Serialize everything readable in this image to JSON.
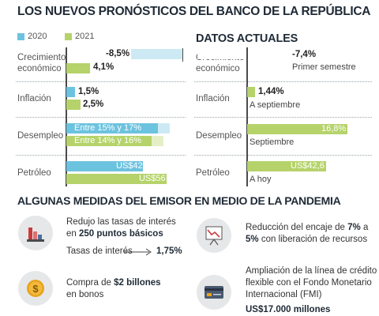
{
  "title": "LOS NUEVOS PRONÓSTICOS DEL BANCO DE LA REPÚBLICA",
  "legend": {
    "items": [
      {
        "label": "2020",
        "color": "#6cc3df"
      },
      {
        "label": "2021",
        "color": "#b5d36a"
      }
    ]
  },
  "current": {
    "title": "DATOS ACTUALES",
    "rows": [
      {
        "label": "Crecimiento económico",
        "value_label": "-7,4%",
        "note": "Primer semestre"
      },
      {
        "label": "Inflación",
        "value_label": "1,44%",
        "note": "A septiembre"
      },
      {
        "label": "Desempleo",
        "value_label": "16,8%",
        "note": "Septiembre"
      },
      {
        "label": "Petróleo",
        "value_label": "US$42,6",
        "note": "A hoy"
      }
    ]
  },
  "chart_data": [
    {
      "type": "bar",
      "orientation": "horizontal",
      "title": "LOS NUEVOS PRONÓSTICOS DEL BANCO DE LA REPÚBLICA",
      "categories": [
        "Crecimiento económico",
        "Inflación",
        "Desempleo",
        "Petróleo"
      ],
      "series": [
        {
          "name": "2020",
          "color": "#6cc3df",
          "values": [
            -8.5,
            1.5,
            16,
            42
          ],
          "labels": [
            "-8,5%",
            "1,5%",
            "Entre 15% y 17%",
            "US$42"
          ],
          "ranges": [
            null,
            null,
            [
              15,
              17
            ],
            null
          ]
        },
        {
          "name": "2021",
          "color": "#b5d36a",
          "values": [
            4.1,
            2.5,
            15,
            56
          ],
          "labels": [
            "4,1%",
            "2,5%",
            "Entre 14% y 16%",
            "US$56"
          ],
          "ranges": [
            null,
            null,
            [
              14,
              16
            ],
            null
          ]
        }
      ]
    },
    {
      "type": "bar",
      "orientation": "horizontal",
      "title": "DATOS ACTUALES",
      "categories": [
        "Crecimiento económico",
        "Inflación",
        "Desempleo",
        "Petróleo"
      ],
      "series": [
        {
          "color": "#b5d36a",
          "values": [
            -7.4,
            1.44,
            16.8,
            42.6
          ],
          "labels": [
            "-7,4%",
            "1,44%",
            "16,8%",
            "US$42,6"
          ]
        }
      ]
    }
  ],
  "measures": {
    "title": "ALGUNAS MEDIDAS DEL EMISOR EN MEDIO DE LA PANDEMIA",
    "rates": {
      "line1": "Redujo las tasas de interés",
      "line2_prefix": "en",
      "line2_bold": "250 puntos básicos",
      "rate_label": "Tasas de interés",
      "rate_value": "1,75%",
      "icon": "bar-chart-icon"
    },
    "bonds": {
      "prefix": "Compra de",
      "bold": "$2 billones",
      "line2": "en bonos",
      "icon": "dollar-coin-icon"
    },
    "reserve": {
      "line1_prefix": "Reducción del encaje de",
      "line1_bold": "7%",
      "line1_suffix": "a",
      "line2_bold": "5%",
      "line2_suffix": "con liberación de recursos",
      "icon": "presentation-chart-icon"
    },
    "fmi": {
      "line1": "Ampliación de la línea de crédito",
      "line2": "flexible con el Fondo Monetario",
      "line3": "Internacional (FMI)",
      "amount": "US$17.000 millones",
      "icon": "credit-card-icon"
    }
  }
}
